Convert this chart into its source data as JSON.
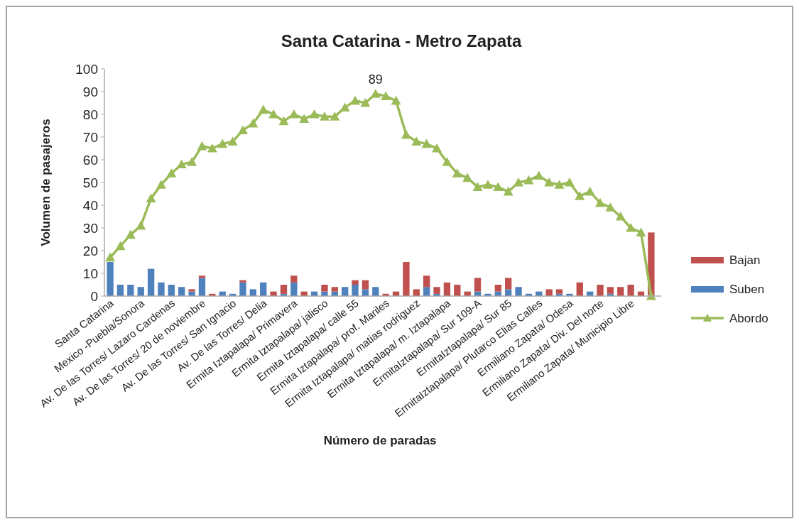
{
  "chart_data": {
    "type": "bar",
    "title": "Santa Catarina - Metro Zapata",
    "xlabel": "Número de paradas",
    "ylabel": "Volumen de pasajeros",
    "categories": [
      "Santa Catarina",
      null,
      null,
      "Mexico -Puebla/Sonora",
      null,
      null,
      "Av. De las Torres/ Lazaro Cardenas",
      null,
      null,
      "Av. De las Torres/ 20 de noviembre",
      null,
      null,
      "Av. De las Torres/ San Ignacio",
      null,
      null,
      "Av. De las Torres/ Delia",
      null,
      null,
      "Ermita Iztapalapa/ Primavera",
      null,
      null,
      "Ermita Iztapalapa/ jalisco",
      null,
      null,
      "Ermita Iztapalapa/ calle 55",
      null,
      null,
      "Ermita Iztapalapa/ prof. Mariles",
      null,
      null,
      "Ermita Iztapalapa/ matias rodriguez",
      null,
      null,
      "Ermita Iztapalapa/ m. Iztapalapa",
      null,
      null,
      "ErmitaIztapalapa/ Sur 109-A",
      null,
      null,
      "ErmitaIztapalapa/ Sur 85",
      null,
      null,
      "ErmitaIztapalapa/ Plutarco Elias Calles",
      null,
      null,
      "Ermiliano Zapata/ Odesa",
      null,
      null,
      "Ermiliano Zapata/ Div. Del norte",
      null,
      null,
      "Ermiliano Zapata/ Municipio Libre",
      null,
      null
    ],
    "stacked": true,
    "ylim": [
      0,
      100
    ],
    "yticks": [
      0,
      10,
      20,
      30,
      40,
      50,
      60,
      70,
      80,
      90,
      100
    ],
    "grid": false,
    "legend": "right",
    "marker": "triangle",
    "series": [
      {
        "name": "Suben",
        "color": "#4f81bd",
        "values": [
          15,
          5,
          5,
          4,
          12,
          6,
          5,
          4,
          2,
          8,
          0,
          2,
          1,
          6,
          3,
          6,
          0,
          1,
          6,
          0,
          2,
          2,
          2,
          4,
          5,
          3,
          4,
          0,
          0,
          0,
          0,
          4,
          1,
          0,
          0,
          0,
          2,
          1,
          2,
          3,
          4,
          1,
          2,
          0,
          1,
          1,
          0,
          2,
          0,
          1,
          0,
          0,
          0,
          0
        ]
      },
      {
        "name": "Bajan",
        "color": "#c0504d",
        "values": [
          0,
          0,
          0,
          0,
          0,
          0,
          0,
          0,
          1,
          1,
          1,
          0,
          0,
          1,
          0,
          0,
          2,
          4,
          3,
          2,
          0,
          3,
          2,
          0,
          2,
          4,
          0,
          1,
          2,
          15,
          3,
          5,
          3,
          6,
          5,
          2,
          6,
          0,
          3,
          5,
          0,
          0,
          0,
          3,
          2,
          0,
          6,
          0,
          5,
          3,
          4,
          5,
          2,
          28
        ]
      },
      {
        "name": "Abordo",
        "type": "line",
        "color": "#9bbb59",
        "values": [
          17,
          22,
          27,
          31,
          43,
          49,
          54,
          58,
          59,
          66,
          65,
          67,
          68,
          73,
          76,
          82,
          80,
          77,
          80,
          78,
          80,
          79,
          79,
          83,
          86,
          85,
          89,
          88,
          86,
          71,
          68,
          67,
          65,
          59,
          54,
          52,
          48,
          49,
          48,
          46,
          50,
          51,
          53,
          50,
          49,
          50,
          44,
          46,
          41,
          39,
          35,
          30,
          28,
          0
        ],
        "value_labels": [
          null,
          null,
          null,
          null,
          null,
          null,
          null,
          null,
          null,
          null,
          null,
          null,
          null,
          null,
          null,
          null,
          null,
          null,
          null,
          null,
          null,
          null,
          null,
          null,
          null,
          null,
          "89",
          null,
          null,
          null,
          null,
          null,
          null,
          null,
          null,
          null,
          null,
          null,
          null,
          null,
          null,
          null,
          null,
          null,
          null,
          null,
          null,
          null,
          null,
          null,
          null,
          null,
          null,
          null
        ]
      }
    ]
  }
}
